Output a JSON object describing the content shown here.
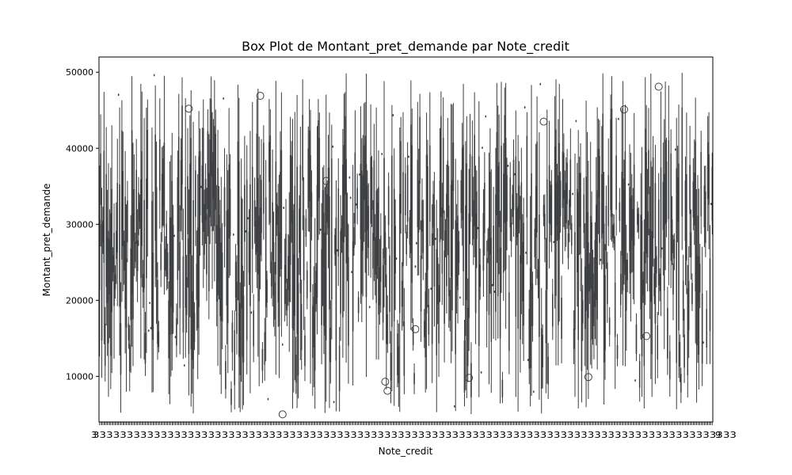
{
  "chart_data": {
    "type": "box",
    "title": "Box Plot de Montant_pret_demande par Note_credit",
    "xlabel": "Note_credit",
    "ylabel": "Montant_pret_demande",
    "ylim": [
      4000,
      52000
    ],
    "yticks": [
      10000,
      20000,
      30000,
      40000,
      50000
    ],
    "ytick_labels": [
      "10000",
      "20000",
      "30000",
      "40000",
      "50000"
    ],
    "x_first_tick_label": "3",
    "x_last_tick_label": "9",
    "n_categories": 550,
    "x_categories_note": "",
    "box_color": "#3a5f8a",
    "line_color": "#3d3d3d",
    "grid": false,
    "outliers": [
      {
        "category_index": 80,
        "value": 45200
      },
      {
        "category_index": 144,
        "value": 46900
      },
      {
        "category_index": 164,
        "value": 5000
      },
      {
        "category_index": 203,
        "value": 35700
      },
      {
        "category_index": 256,
        "value": 9300
      },
      {
        "category_index": 258,
        "value": 8100
      },
      {
        "category_index": 283,
        "value": 16200
      },
      {
        "category_index": 331,
        "value": 9800
      },
      {
        "category_index": 398,
        "value": 43500
      },
      {
        "category_index": 438,
        "value": 9900
      },
      {
        "category_index": 470,
        "value": 45100
      },
      {
        "category_index": 490,
        "value": 15300
      },
      {
        "category_index": 501,
        "value": 48100
      }
    ]
  }
}
